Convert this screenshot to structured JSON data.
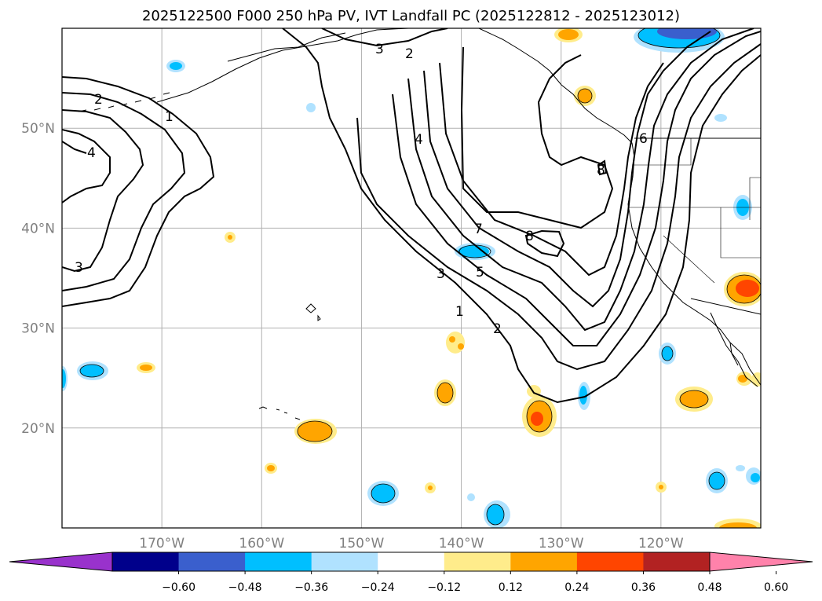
{
  "title": "2025122500 F000 250 hPa PV, IVT Landfall PC (2025122812 - 2025123012)",
  "map": {
    "lon_range": [
      -180,
      -110
    ],
    "lat_range": [
      10,
      60
    ],
    "grid": true,
    "lat_ticks": [
      {
        "value": 20,
        "label": "20°N"
      },
      {
        "value": 30,
        "label": "30°N"
      },
      {
        "value": 40,
        "label": "40°N"
      },
      {
        "value": 50,
        "label": "50°N"
      }
    ],
    "lon_ticks": [
      {
        "value": -170,
        "label": "170°W"
      },
      {
        "value": -160,
        "label": "160°W"
      },
      {
        "value": -150,
        "label": "150°W"
      },
      {
        "value": -140,
        "label": "140°W"
      },
      {
        "value": -130,
        "label": "130°W"
      },
      {
        "value": -120,
        "label": "120°W"
      }
    ],
    "contour_labels": [
      "1",
      "2",
      "3",
      "4",
      "5",
      "6",
      "7",
      "8"
    ]
  },
  "colorbar": {
    "extend": "both",
    "tick_labels": [
      "−0.60",
      "−0.48",
      "−0.36",
      "−0.24",
      "−0.12",
      "0.12",
      "0.24",
      "0.36",
      "0.48",
      "0.60"
    ],
    "colors": [
      "#9932cc",
      "#00008b",
      "#3a5fcd",
      "#00bfff",
      "#b0e2ff",
      "#ffffff",
      "#ffec8b",
      "#ffa500",
      "#ff4500",
      "#b22222",
      "#ff82ab"
    ]
  }
}
